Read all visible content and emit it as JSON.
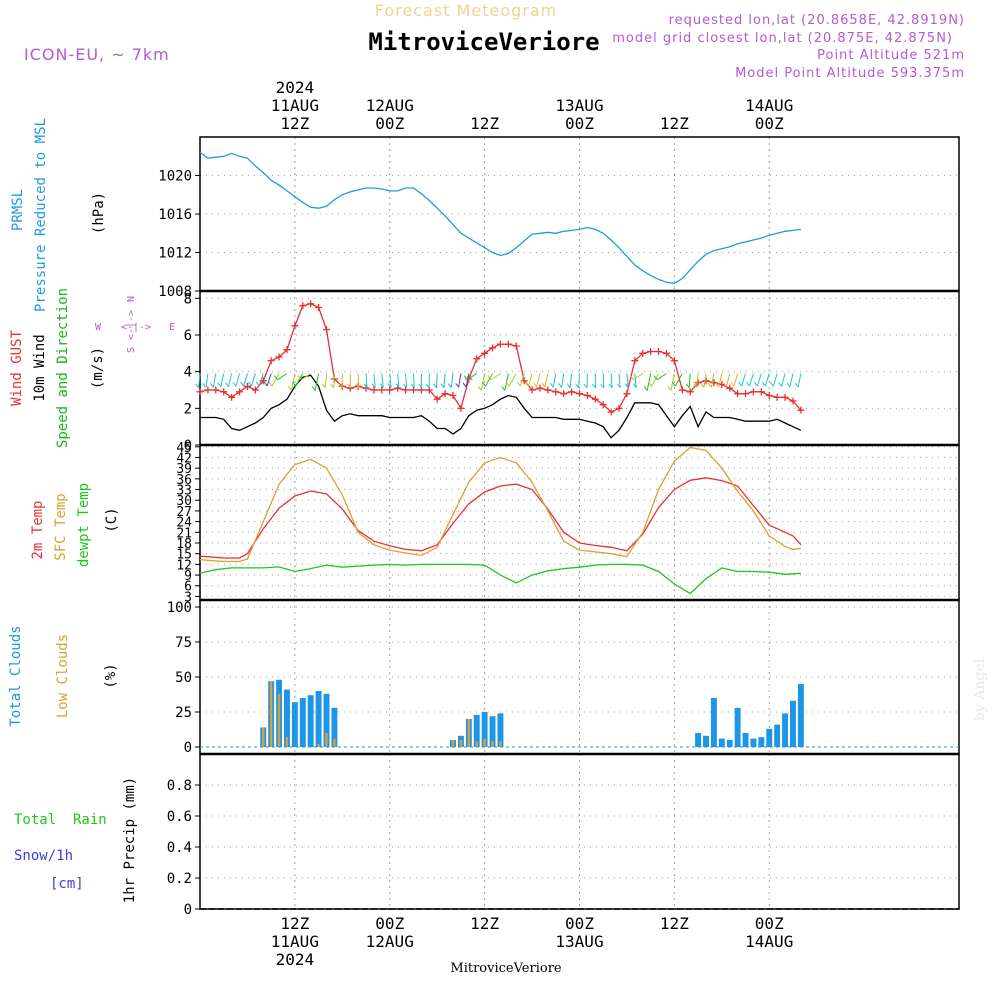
{
  "header": {
    "subtitle": "Forecast Meteogram",
    "title": "MitroviceVeriore",
    "model": "ICON-EU, ~ 7km",
    "requested": "requested lon,lat (20.8658E, 42.8919N)",
    "closest": "model grid closest lon,lat (20.875E, 42.875N)",
    "point_alt": "Point Altitude 521m",
    "model_alt": "Model Point Altitude 593.375m",
    "footer_name": "MitroviceVeriore",
    "credit": "by Angel"
  },
  "colors": {
    "pressure": "#1e9be6",
    "gust": "#e63232",
    "wind": "#000000",
    "dir": "#19b419",
    "t2m": "#e63232",
    "tsfc": "#dca032",
    "td": "#19c819",
    "total_clouds": "#1e96e6",
    "low_clouds": "#dca032",
    "rain": "#19c819",
    "snow": "#3c3cdc",
    "purple": "#b45ad2"
  },
  "time_axis": {
    "start_hour": 0,
    "end_hour": 96,
    "top_labels": [
      {
        "hour": 12,
        "line1": "2024",
        "line2": "11AUG",
        "line3": "12Z"
      },
      {
        "hour": 24,
        "line1": "",
        "line2": "12AUG",
        "line3": "00Z"
      },
      {
        "hour": 36,
        "line1": "",
        "line2": "",
        "line3": "12Z"
      },
      {
        "hour": 48,
        "line1": "",
        "line2": "13AUG",
        "line3": "00Z"
      },
      {
        "hour": 60,
        "line1": "",
        "line2": "",
        "line3": "12Z"
      },
      {
        "hour": 72,
        "line1": "",
        "line2": "14AUG",
        "line3": "00Z"
      }
    ],
    "bottom_labels": [
      {
        "hour": 12,
        "line1": "12Z",
        "line2": "11AUG",
        "line3": "2024"
      },
      {
        "hour": 24,
        "line1": "00Z",
        "line2": "12AUG",
        "line3": ""
      },
      {
        "hour": 36,
        "line1": "12Z",
        "line2": "",
        "line3": ""
      },
      {
        "hour": 48,
        "line1": "00Z",
        "line2": "13AUG",
        "line3": ""
      },
      {
        "hour": 60,
        "line1": "12Z",
        "line2": "",
        "line3": ""
      },
      {
        "hour": 72,
        "line1": "00Z",
        "line2": "14AUG",
        "line3": ""
      }
    ]
  },
  "chart_data": [
    {
      "type": "line",
      "title": "PRMSL Pressure Reduced to MSL",
      "ylabel_line1": "PRMSL",
      "ylabel_line2": "Pressure Reduced to MSL",
      "unit": "(hPa)",
      "ylim": [
        1008,
        1024
      ],
      "yticks": [
        1008,
        1012,
        1016,
        1020
      ],
      "ytick_labels": [
        "1008",
        "1012",
        "1016",
        "1020"
      ],
      "series": [
        {
          "name": "PRMSL",
          "x": [
            0,
            1,
            2,
            3,
            4,
            5,
            6,
            7,
            8,
            9,
            10,
            11,
            12,
            13,
            14,
            15,
            16,
            17,
            18,
            19,
            20,
            21,
            22,
            23,
            24,
            25,
            26,
            27,
            28,
            29,
            30,
            31,
            32,
            33,
            34,
            35,
            36,
            37,
            38,
            39,
            40,
            41,
            42,
            43,
            44,
            45,
            46,
            47,
            48,
            49,
            50,
            51,
            52,
            53,
            54,
            55,
            56,
            57,
            58,
            59,
            60,
            61,
            62,
            63,
            64,
            65,
            66,
            67,
            68,
            69,
            70,
            71,
            72,
            73,
            74,
            75,
            76
          ],
          "values": [
            1022.4,
            1021.8,
            1021.9,
            1022.0,
            1022.3,
            1022.0,
            1021.8,
            1021.0,
            1020.3,
            1019.5,
            1019.0,
            1018.4,
            1017.8,
            1017.2,
            1016.7,
            1016.6,
            1016.8,
            1017.5,
            1018.0,
            1018.3,
            1018.5,
            1018.7,
            1018.7,
            1018.6,
            1018.4,
            1018.4,
            1018.7,
            1018.7,
            1018.1,
            1017.4,
            1016.6,
            1015.8,
            1014.9,
            1014.0,
            1013.5,
            1013.0,
            1012.5,
            1012.0,
            1011.7,
            1011.9,
            1012.5,
            1013.2,
            1013.9,
            1014.0,
            1014.1,
            1014.0,
            1014.2,
            1014.3,
            1014.4,
            1014.6,
            1014.4,
            1014.0,
            1013.3,
            1012.5,
            1011.6,
            1010.7,
            1010.1,
            1009.6,
            1009.2,
            1008.9,
            1008.8,
            1009.3,
            1010.2,
            1011.1,
            1011.8,
            1012.2,
            1012.4,
            1012.6,
            1012.9,
            1013.1,
            1013.3,
            1013.5,
            1013.8,
            1014.0,
            1014.2,
            1014.3,
            1014.4
          ]
        }
      ]
    },
    {
      "type": "line",
      "title": "Wind GUST / 10m Wind Speed and Direction",
      "ylabel_gust": "Wind GUST",
      "ylabel_wind": "10m Wind",
      "ylabel_dir": "Speed and Direction",
      "unit": "(m/s)",
      "compass_n": "N",
      "compass_s": "S",
      "compass_w": "W",
      "compass_e": "E",
      "ylim": [
        0,
        8.4
      ],
      "yticks": [
        0,
        2,
        4,
        6,
        8
      ],
      "ytick_labels": [
        "0",
        "2",
        "4",
        "6",
        "8"
      ],
      "series": [
        {
          "name": "Wind GUST",
          "x": [
            0,
            1,
            2,
            3,
            4,
            5,
            6,
            7,
            8,
            9,
            10,
            11,
            12,
            13,
            14,
            15,
            16,
            17,
            18,
            19,
            20,
            21,
            22,
            23,
            24,
            25,
            26,
            27,
            28,
            29,
            30,
            31,
            32,
            33,
            34,
            35,
            36,
            37,
            38,
            39,
            40,
            41,
            42,
            43,
            44,
            45,
            46,
            47,
            48,
            49,
            50,
            51,
            52,
            53,
            54,
            55,
            56,
            57,
            58,
            59,
            60,
            61,
            62,
            63,
            64,
            65,
            66,
            67,
            68,
            69,
            70,
            71,
            72,
            73,
            74,
            75,
            76
          ],
          "values": [
            2.9,
            3.0,
            3.0,
            2.9,
            2.6,
            2.9,
            3.2,
            3.0,
            3.5,
            4.6,
            4.8,
            5.2,
            6.5,
            7.6,
            7.7,
            7.5,
            6.3,
            3.6,
            3.2,
            3.1,
            3.2,
            3.1,
            3.0,
            3.0,
            3.0,
            3.1,
            3.0,
            3.0,
            3.0,
            3.0,
            2.5,
            2.8,
            2.7,
            2.0,
            3.6,
            4.7,
            5.0,
            5.3,
            5.5,
            5.5,
            5.4,
            3.5,
            3.0,
            3.1,
            3.0,
            2.9,
            2.8,
            2.9,
            2.8,
            2.7,
            2.5,
            2.2,
            1.8,
            2.0,
            2.8,
            4.6,
            5.0,
            5.1,
            5.1,
            5.0,
            4.6,
            3.0,
            2.9,
            3.4,
            3.5,
            3.4,
            3.3,
            3.1,
            2.8,
            2.8,
            2.9,
            2.9,
            2.7,
            2.6,
            2.6,
            2.4,
            1.9
          ]
        },
        {
          "name": "10m Wind",
          "x": [
            0,
            1,
            2,
            3,
            4,
            5,
            6,
            7,
            8,
            9,
            10,
            11,
            12,
            13,
            14,
            15,
            16,
            17,
            18,
            19,
            20,
            21,
            22,
            23,
            24,
            25,
            26,
            27,
            28,
            29,
            30,
            31,
            32,
            33,
            34,
            35,
            36,
            37,
            38,
            39,
            40,
            41,
            42,
            43,
            44,
            45,
            46,
            47,
            48,
            49,
            50,
            51,
            52,
            53,
            54,
            55,
            56,
            57,
            58,
            59,
            60,
            61,
            62,
            63,
            64,
            65,
            66,
            67,
            68,
            69,
            70,
            71,
            72,
            73,
            74,
            75,
            76
          ],
          "values": [
            1.5,
            1.5,
            1.5,
            1.4,
            0.9,
            0.8,
            1.0,
            1.2,
            1.5,
            2.0,
            2.2,
            2.5,
            3.2,
            3.7,
            3.8,
            3.2,
            1.9,
            1.3,
            1.6,
            1.7,
            1.6,
            1.6,
            1.6,
            1.6,
            1.5,
            1.5,
            1.5,
            1.5,
            1.6,
            1.3,
            0.9,
            0.9,
            0.6,
            0.9,
            1.6,
            1.9,
            2.0,
            2.2,
            2.5,
            2.7,
            2.6,
            2.0,
            1.5,
            1.5,
            1.5,
            1.5,
            1.4,
            1.4,
            1.4,
            1.3,
            1.2,
            1.0,
            0.4,
            0.8,
            1.5,
            2.3,
            2.3,
            2.3,
            2.2,
            1.6,
            1.0,
            1.6,
            2.1,
            1.0,
            1.8,
            1.5,
            1.5,
            1.5,
            1.4,
            1.3,
            1.3,
            1.3,
            1.3,
            1.4,
            1.2,
            1.0,
            0.8
          ]
        }
      ]
    },
    {
      "type": "line",
      "title": "2m Temp / SFC Temp / dewpt Temp",
      "ylabel_t2m": "2m Temp",
      "ylabel_tsfc": "SFC Temp",
      "ylabel_td": "dewpt Temp",
      "unit": "(C)",
      "ylim": [
        2,
        45.5
      ],
      "yticks": [
        3,
        6,
        9,
        12,
        15,
        18,
        21,
        24,
        27,
        30,
        33,
        36,
        39,
        42,
        45
      ],
      "ytick_labels": [
        "3",
        "6",
        "9",
        "12",
        "15",
        "18",
        "21",
        "24",
        "27",
        "30",
        "33",
        "36",
        "39",
        "42",
        "45"
      ],
      "series": [
        {
          "name": "2m Temp",
          "x": [
            0,
            3,
            5,
            6,
            8,
            10,
            12,
            14,
            16,
            18,
            20,
            22,
            24,
            26,
            28,
            30,
            32,
            34,
            36,
            38,
            40,
            42,
            44,
            46,
            48,
            50,
            52,
            54,
            56,
            58,
            60,
            62,
            64,
            66,
            68,
            70,
            72,
            74,
            75,
            76
          ],
          "values": [
            14.3,
            13.8,
            13.8,
            15.0,
            22.0,
            27.8,
            31.2,
            32.6,
            31.8,
            27.5,
            21.5,
            18.5,
            17.2,
            16.2,
            15.8,
            17.5,
            23.5,
            29.0,
            32.3,
            34.0,
            34.5,
            33.0,
            27.5,
            21.0,
            18.0,
            17.3,
            16.8,
            15.8,
            20.5,
            28.0,
            33.0,
            35.6,
            36.3,
            35.5,
            34.0,
            28.5,
            23.0,
            21.0,
            20.0,
            17.5
          ]
        },
        {
          "name": "SFC Temp",
          "x": [
            0,
            3,
            5,
            6,
            8,
            10,
            12,
            14,
            16,
            18,
            20,
            22,
            24,
            26,
            28,
            30,
            32,
            34,
            36,
            38,
            40,
            42,
            44,
            46,
            48,
            50,
            52,
            54,
            56,
            58,
            60,
            62,
            64,
            66,
            68,
            70,
            72,
            74,
            75,
            76
          ],
          "values": [
            13.3,
            12.8,
            12.8,
            13.5,
            24.0,
            34.5,
            40.0,
            41.5,
            39.0,
            31.5,
            21.0,
            17.5,
            16.0,
            15.2,
            14.5,
            16.8,
            26.0,
            35.0,
            40.5,
            42.0,
            40.5,
            35.0,
            27.0,
            18.5,
            16.0,
            15.5,
            15.0,
            14.2,
            21.0,
            33.0,
            41.0,
            44.8,
            44.0,
            39.0,
            32.5,
            27.0,
            20.0,
            17.0,
            16.2,
            16.5
          ]
        },
        {
          "name": "dewpt Temp",
          "x": [
            0,
            2,
            4,
            6,
            8,
            10,
            12,
            14,
            16,
            18,
            20,
            22,
            24,
            26,
            28,
            30,
            32,
            34,
            36,
            38,
            40,
            42,
            44,
            46,
            48,
            50,
            52,
            54,
            56,
            58,
            60,
            62,
            64,
            66,
            68,
            70,
            72,
            74,
            76
          ],
          "values": [
            9.5,
            10.5,
            11.0,
            11.0,
            11.0,
            11.3,
            10.0,
            10.8,
            11.8,
            11.2,
            11.5,
            11.8,
            12.0,
            11.8,
            12.0,
            12.0,
            12.0,
            12.0,
            11.8,
            9.0,
            6.8,
            9.0,
            10.2,
            10.8,
            11.2,
            11.8,
            12.0,
            12.0,
            11.8,
            10.0,
            6.5,
            3.8,
            8.0,
            11.0,
            10.0,
            10.0,
            9.8,
            9.2,
            9.5
          ]
        }
      ]
    },
    {
      "type": "bar",
      "title": "Total Clouds / Low Clouds",
      "ylabel_total": "Total Clouds",
      "ylabel_low": "Low Clouds",
      "unit": "(%)",
      "ylim": [
        -5,
        105
      ],
      "yticks": [
        0,
        25,
        50,
        75,
        100
      ],
      "ytick_labels": [
        "0",
        "25",
        "50",
        "75",
        "100"
      ],
      "x": [
        8,
        9,
        10,
        11,
        12,
        13,
        14,
        15,
        16,
        17,
        32,
        33,
        34,
        35,
        36,
        37,
        38,
        63,
        64,
        65,
        66,
        67,
        68,
        69,
        70,
        71,
        72,
        73,
        74,
        75,
        76
      ],
      "series": [
        {
          "name": "Total Clouds",
          "values": [
            14,
            47,
            48,
            41,
            32,
            35,
            37,
            40,
            38,
            28,
            5,
            8,
            20,
            23,
            25,
            22,
            24,
            10,
            8,
            35,
            6,
            5,
            28,
            10,
            6,
            7,
            13,
            16,
            24,
            33,
            45
          ]
        },
        {
          "name": "Low Clouds",
          "values": [
            14,
            47,
            38,
            7,
            0,
            0,
            0,
            2,
            10,
            6,
            5,
            5,
            20,
            4,
            6,
            4,
            4,
            0,
            0,
            0,
            0,
            0,
            0,
            0,
            0,
            0,
            0,
            0,
            0,
            0,
            0
          ]
        }
      ]
    },
    {
      "type": "bar",
      "title": "1hr Precip",
      "ylabel_rain": "Total  Rain",
      "ylabel_snow1": "Snow/1h",
      "ylabel_snow2": "[cm]",
      "unit": "1hr Precip (mm)",
      "ylim": [
        0,
        1.0
      ],
      "yticks": [
        0,
        0.2,
        0.4,
        0.6,
        0.8
      ],
      "ytick_labels": [
        "0",
        "0.2",
        "0.4",
        "0.6",
        "0.8"
      ],
      "x": [],
      "series": [
        {
          "name": "Total Rain",
          "values": []
        },
        {
          "name": "Snow/1h",
          "values": []
        }
      ]
    }
  ]
}
